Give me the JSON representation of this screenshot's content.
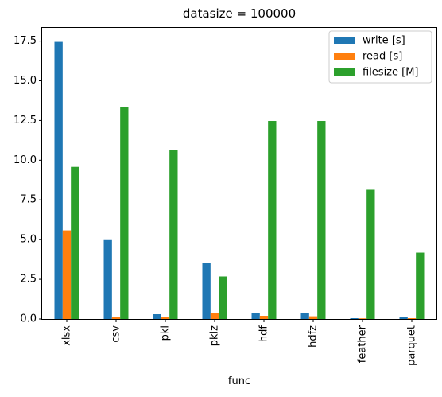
{
  "chart_data": {
    "type": "bar",
    "title": "datasize = 100000",
    "xlabel": "func",
    "ylabel": "",
    "categories": [
      "xlsx",
      "csv",
      "pkl",
      "pklz",
      "hdf",
      "hdfz",
      "feather",
      "parquet"
    ],
    "series": [
      {
        "name": "write [s]",
        "color": "#1f77b4",
        "values": [
          17.45,
          4.97,
          0.3,
          3.55,
          0.37,
          0.37,
          0.05,
          0.1
        ]
      },
      {
        "name": "read [s]",
        "color": "#ff7f0e",
        "values": [
          5.58,
          0.14,
          0.13,
          0.36,
          0.2,
          0.17,
          0.04,
          0.05
        ]
      },
      {
        "name": "filesize [M]",
        "color": "#2ca02c",
        "values": [
          9.58,
          13.36,
          10.66,
          2.68,
          12.47,
          12.47,
          8.14,
          4.18
        ]
      }
    ],
    "ylim": [
      0,
      18.33
    ],
    "yticks": [
      "0.0",
      "2.5",
      "5.0",
      "7.5",
      "10.0",
      "12.5",
      "15.0",
      "17.5"
    ],
    "legend_position": "top-right",
    "grid": false
  }
}
